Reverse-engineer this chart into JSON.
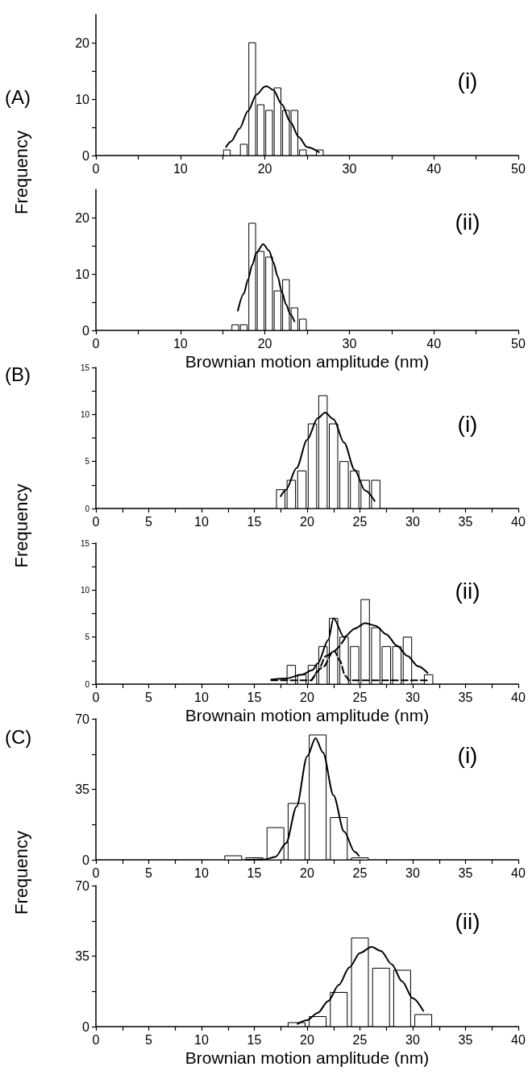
{
  "chart_data": [
    {
      "type": "histogram",
      "title": "(A)",
      "ylabel": "Frequency",
      "annotations": [
        "(i)"
      ],
      "color": "#ffffff",
      "bins": [
        15,
        16,
        17,
        18,
        19,
        20,
        21,
        22,
        23,
        24,
        25,
        26,
        27
      ],
      "values": [
        1,
        0,
        2,
        20,
        9,
        8,
        12,
        8,
        8,
        1,
        0,
        1
      ],
      "series": [
        {
          "type": "line",
          "color": "#000000",
          "x": [
            15.4,
            16,
            17,
            18,
            19,
            20,
            20.2,
            21,
            22,
            23,
            24,
            25,
            26.4
          ],
          "values": [
            1.5,
            2.5,
            4.8,
            7.9,
            10.8,
            12.2,
            12.3,
            11.6,
            9.1,
            6.0,
            3.3,
            1.5,
            0.6
          ]
        }
      ],
      "xlim": [
        0,
        50
      ],
      "xticks": [
        0,
        {
          "value": 5,
          "label": null
        },
        10,
        {
          "value": 15,
          "label": null
        },
        20,
        {
          "value": 25,
          "label": null
        },
        30,
        {
          "value": 35,
          "label": null
        },
        40,
        {
          "value": 45,
          "label": null
        },
        50
      ],
      "ylim": [
        0,
        25
      ],
      "yticks": [
        0,
        {
          "value": 5,
          "label": null
        },
        10,
        {
          "value": 15,
          "label": null
        },
        20
      ]
    },
    {
      "type": "histogram",
      "xlabel": "Brownian motion amplitude (nm)",
      "annotations": [
        "(ii)"
      ],
      "color": "#ffffff",
      "bins": [
        16,
        17,
        18,
        19,
        20,
        21,
        22,
        23,
        24,
        25
      ],
      "values": [
        1,
        1,
        19,
        14,
        13,
        7,
        9,
        4,
        2
      ],
      "series": [
        {
          "type": "line",
          "color": "#000000",
          "x": [
            16.8,
            17.5,
            18,
            18.5,
            19,
            19.8,
            20.5,
            21,
            21.5,
            22,
            22.5,
            23,
            23.5
          ],
          "values": [
            3.5,
            6.5,
            9.0,
            11.6,
            13.8,
            15.3,
            14.1,
            12.1,
            9.6,
            6.9,
            4.6,
            2.9,
            1.6
          ]
        }
      ],
      "xlim": [
        0,
        50
      ],
      "xticks": [
        0,
        {
          "value": 5,
          "label": null
        },
        10,
        {
          "value": 15,
          "label": null
        },
        20,
        {
          "value": 25,
          "label": null
        },
        30,
        {
          "value": 35,
          "label": null
        },
        40,
        {
          "value": 45,
          "label": null
        },
        50
      ],
      "ylim": [
        0,
        25
      ],
      "yticks": [
        0,
        {
          "value": 5,
          "label": null
        },
        10,
        {
          "value": 15,
          "label": null
        },
        20
      ]
    },
    {
      "type": "histogram",
      "title": "(B)",
      "ylabel": "Frequency",
      "annotations": [
        "(i)"
      ],
      "color": "#ffffff",
      "bins": [
        17,
        18,
        19,
        20,
        21,
        22,
        23,
        24,
        25,
        26,
        27
      ],
      "values": [
        2,
        3,
        4,
        9,
        12,
        9,
        5,
        4,
        3,
        3
      ],
      "series": [
        {
          "type": "line",
          "color": "#000000",
          "x": [
            17.5,
            18,
            19,
            20,
            21,
            21.7,
            22.5,
            23.5,
            24.5,
            25.5,
            26.4
          ],
          "values": [
            1.3,
            2.0,
            4.3,
            7.3,
            9.6,
            10.2,
            9.5,
            7.0,
            4.1,
            1.9,
            0.8
          ]
        }
      ],
      "xlim": [
        0,
        40
      ],
      "xticks": [
        0,
        {
          "value": 2.5,
          "label": null
        },
        5,
        {
          "value": 7.5,
          "label": null
        },
        10,
        {
          "value": 12.5,
          "label": null
        },
        15,
        {
          "value": 17.5,
          "label": null
        },
        20,
        {
          "value": 22.5,
          "label": null
        },
        25,
        {
          "value": 27.5,
          "label": null
        },
        30,
        {
          "value": 32.5,
          "label": null
        },
        35,
        {
          "value": 37.5,
          "label": null
        },
        40
      ],
      "ylim": [
        0,
        15
      ],
      "yticks": [
        0,
        {
          "value": 2.5,
          "label": null
        },
        5,
        {
          "value": 7.5,
          "label": null
        },
        10,
        {
          "value": 12.5,
          "label": null
        },
        15
      ]
    },
    {
      "type": "histogram",
      "xlabel": "Brownain motion amplitude (nm)",
      "annotations": [
        "(ii)"
      ],
      "color": "#ffffff",
      "bins": [
        18,
        19,
        20,
        21,
        22,
        23,
        24,
        25,
        26,
        27,
        28,
        29,
        30,
        31,
        32
      ],
      "values": [
        2,
        1,
        2,
        4,
        7,
        5,
        4,
        9,
        6,
        4,
        4,
        5,
        0,
        1
      ],
      "series": [
        {
          "type": "line",
          "color": "#000000",
          "x": [
            16.6,
            18,
            19.5,
            20.5,
            21,
            22,
            22.5,
            23.5,
            24.5,
            25.5,
            26.5,
            27.5,
            28.5,
            29.5,
            30.5,
            31.4
          ],
          "values": [
            0.5,
            0.6,
            1.0,
            1.5,
            2.2,
            4.7,
            7.0,
            5.0,
            5.9,
            6.5,
            6.2,
            5.3,
            4.1,
            3.0,
            1.9,
            1.2
          ]
        },
        {
          "type": "line",
          "color": "#000000",
          "line_style": "dashed",
          "x": [
            16.6,
            20.4,
            21,
            21.8,
            22.6,
            23.1,
            23.6,
            24,
            31.4
          ],
          "values": [
            0.4,
            0.4,
            1.4,
            3.0,
            3.5,
            2.5,
            0.9,
            0.4,
            0.4
          ]
        },
        {
          "type": "line",
          "color": "#000000",
          "line_style": "dashed",
          "x": [
            20.4,
            21.5,
            22.5,
            23.6
          ],
          "values": [
            0.4,
            1.8,
            3.5,
            4.9
          ]
        }
      ],
      "xlim": [
        0,
        40
      ],
      "xticks": [
        0,
        {
          "value": 2.5,
          "label": null
        },
        5,
        {
          "value": 7.5,
          "label": null
        },
        10,
        {
          "value": 12.5,
          "label": null
        },
        15,
        {
          "value": 17.5,
          "label": null
        },
        20,
        {
          "value": 22.5,
          "label": null
        },
        25,
        {
          "value": 27.5,
          "label": null
        },
        30,
        {
          "value": 32.5,
          "label": null
        },
        35,
        {
          "value": 37.5,
          "label": null
        },
        40
      ],
      "ylim": [
        0,
        15
      ],
      "yticks": [
        0,
        {
          "value": 2.5,
          "label": null
        },
        5,
        {
          "value": 7.5,
          "label": null
        },
        10,
        {
          "value": 12.5,
          "label": null
        },
        15
      ]
    },
    {
      "type": "histogram",
      "title": "(C)",
      "ylabel": "Frequency",
      "annotations": [
        "(i)"
      ],
      "color": "#ffffff",
      "bins": [
        12,
        14,
        16,
        18,
        20,
        22,
        24,
        26
      ],
      "values": [
        2,
        1,
        16,
        28,
        62,
        21,
        1
      ],
      "series": [
        {
          "type": "line",
          "color": "#000000",
          "x": [
            14.2,
            16,
            17,
            18,
            19,
            20,
            20.8,
            21.5,
            22.5,
            23.5,
            24.5,
            24.9
          ],
          "values": [
            0,
            0.2,
            1.5,
            8.2,
            26.4,
            51.3,
            60.4,
            53.3,
            32,
            14,
            4,
            2
          ]
        }
      ],
      "xlim": [
        0,
        40
      ],
      "xticks": [
        0,
        {
          "value": 2.5,
          "label": null
        },
        5,
        {
          "value": 7.5,
          "label": null
        },
        10,
        {
          "value": 12.5,
          "label": null
        },
        15,
        {
          "value": 17.5,
          "label": null
        },
        20,
        {
          "value": 22.5,
          "label": null
        },
        25,
        {
          "value": 27.5,
          "label": null
        },
        30,
        {
          "value": 32.5,
          "label": null
        },
        35,
        {
          "value": 37.5,
          "label": null
        },
        40
      ],
      "ylim": [
        0,
        70
      ],
      "yticks": [
        0,
        {
          "value": 17.5,
          "label": null
        },
        35,
        {
          "value": 52.5,
          "label": null
        },
        70
      ]
    },
    {
      "type": "histogram",
      "xlabel": "Brownian motion amplitude (nm)",
      "annotations": [
        "(ii)"
      ],
      "color": "#ffffff",
      "bins": [
        18,
        20,
        22,
        24,
        26,
        28,
        30,
        32
      ],
      "values": [
        2,
        5,
        17,
        44,
        29,
        28,
        6
      ],
      "series": [
        {
          "type": "line",
          "color": "#000000",
          "x": [
            19.1,
            20,
            21,
            22,
            23,
            24,
            25,
            26.1,
            27,
            28,
            29,
            30,
            31
          ],
          "values": [
            1.4,
            3.2,
            6.8,
            12.7,
            20.7,
            29.4,
            36.5,
            39.6,
            37.5,
            31.0,
            22.4,
            14.1,
            7.8
          ]
        }
      ],
      "xlim": [
        0,
        40
      ],
      "xticks": [
        0,
        {
          "value": 2.5,
          "label": null
        },
        5,
        {
          "value": 7.5,
          "label": null
        },
        10,
        {
          "value": 12.5,
          "label": null
        },
        15,
        {
          "value": 17.5,
          "label": null
        },
        20,
        {
          "value": 22.5,
          "label": null
        },
        25,
        {
          "value": 27.5,
          "label": null
        },
        30,
        {
          "value": 32.5,
          "label": null
        },
        35,
        {
          "value": 37.5,
          "label": null
        },
        40
      ],
      "ylim": [
        0,
        70
      ],
      "yticks": [
        0,
        {
          "value": 17.5,
          "label": null
        },
        35,
        {
          "value": 52.5,
          "label": null
        },
        70
      ]
    }
  ]
}
